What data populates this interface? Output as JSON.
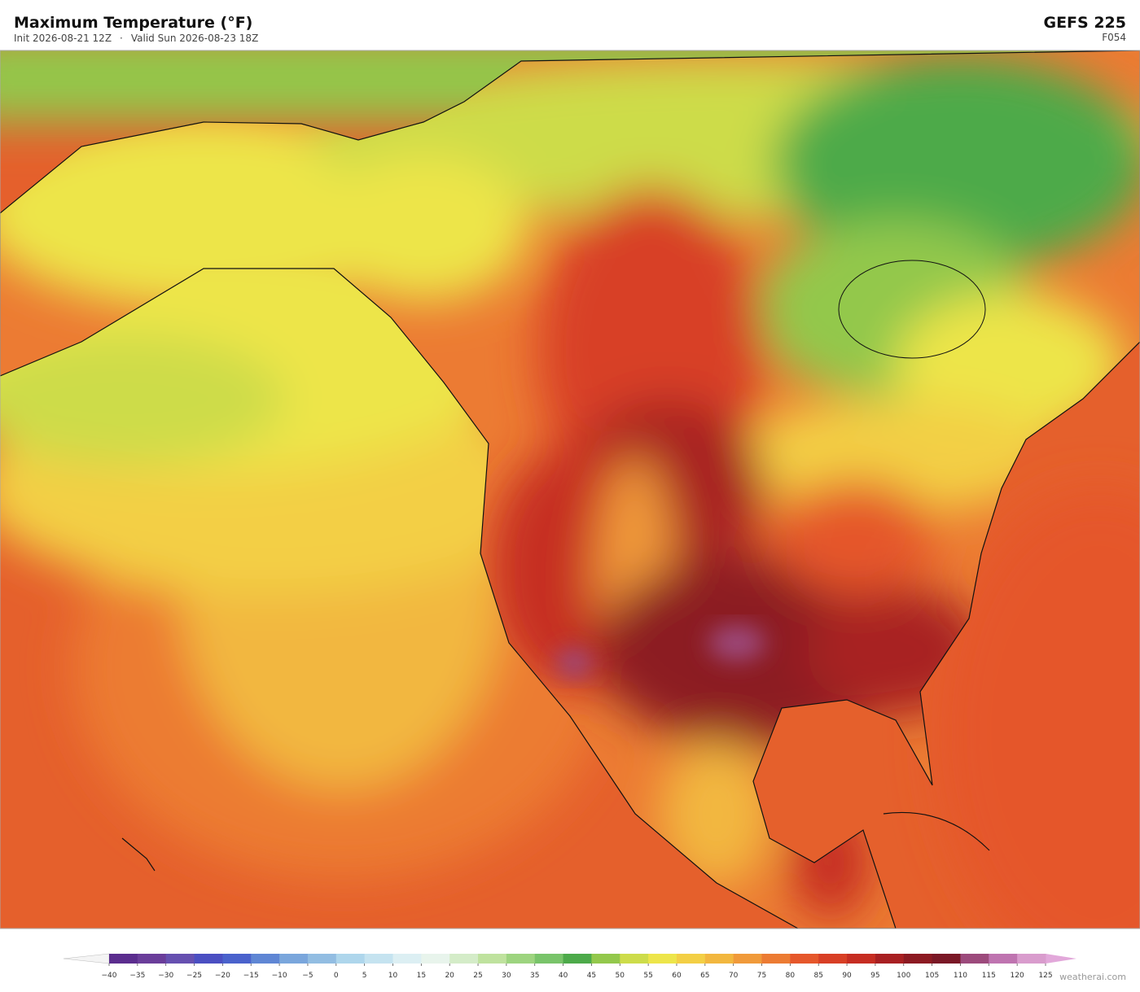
{
  "header": {
    "title": "Maximum Temperature  (°F)",
    "init": "Init 2026-08-21 12Z",
    "separator": "·",
    "valid": "Valid Sun 2026-08-23 18Z",
    "model": "GEFS  225",
    "forecast_hour": "F054"
  },
  "colorbar": {
    "ticks": [
      {
        "value": -40,
        "label": "−40"
      },
      {
        "value": -35,
        "label": "−35"
      },
      {
        "value": -30,
        "label": "−30"
      },
      {
        "value": -25,
        "label": "−25"
      },
      {
        "value": -20,
        "label": "−20"
      },
      {
        "value": -15,
        "label": "−15"
      },
      {
        "value": -10,
        "label": "−10"
      },
      {
        "value": -5,
        "label": "−5"
      },
      0,
      5,
      10,
      15,
      20,
      25,
      30,
      35,
      40,
      45,
      50,
      55,
      60,
      65,
      70,
      75,
      80,
      85,
      90,
      95,
      100,
      105,
      110,
      115,
      120,
      125
    ],
    "colors": [
      "#5b2d8e",
      "#6a3d9a",
      "#6650b0",
      "#4b4fc2",
      "#4a62cc",
      "#5f86d4",
      "#7aa6dc",
      "#92bde2",
      "#aed6ec",
      "#c5e3f0",
      "#dceff3",
      "#e8f4ec",
      "#d4ecc8",
      "#bfe29e",
      "#9dd47f",
      "#79c46a",
      "#4daa4a",
      "#93c84c",
      "#cddc4a",
      "#ede54a",
      "#f3cf45",
      "#f2b73f",
      "#f09a3a",
      "#ec7b33",
      "#e5572b",
      "#d83f25",
      "#c62d22",
      "#a82022",
      "#8c1a22",
      "#7a1826",
      "#9c4a7c",
      "#bf74b0",
      "#d99ccd"
    ],
    "under_color": "#f4f4f4",
    "over_color": "#e2a8da"
  },
  "watermark": "weatherai.com"
}
